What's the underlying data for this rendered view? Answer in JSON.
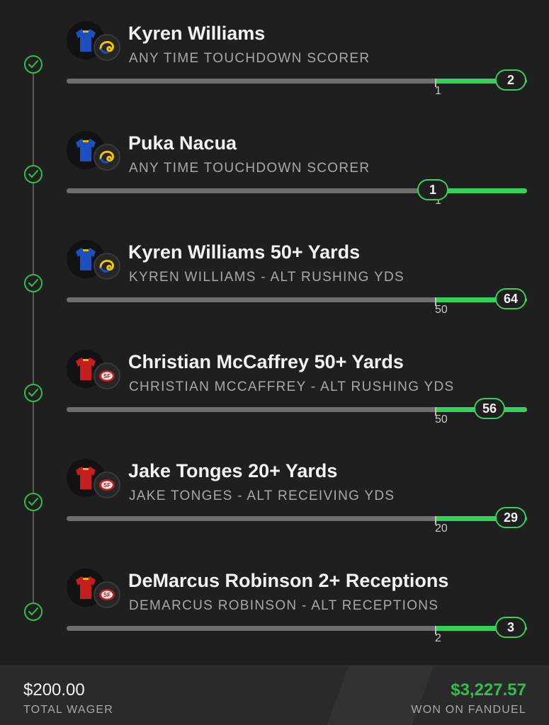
{
  "legs": [
    {
      "title": "Kyren Williams",
      "market": "ANY TIME TOUCHDOWN SCORER",
      "team": "rams",
      "jersey_color": "#1e4fc0",
      "status_icon": "check-circle-icon",
      "target": "1",
      "result": "2",
      "progress": 1.0
    },
    {
      "title": "Puka Nacua",
      "market": "ANY TIME TOUCHDOWN SCORER",
      "team": "rams",
      "jersey_color": "#1e4fc0",
      "status_icon": "check-circle-icon",
      "target": "1",
      "result": "1",
      "progress": 1.0
    },
    {
      "title": "Kyren Williams 50+ Yards",
      "market": "KYREN WILLIAMS - ALT RUSHING YDS",
      "team": "rams",
      "jersey_color": "#1e4fc0",
      "status_icon": "check-circle-icon",
      "target": "50",
      "result": "64",
      "progress": 1.0
    },
    {
      "title": "Christian McCaffrey 50+ Yards",
      "market": "CHRISTIAN MCCAFFREY - ALT RUSHING YDS",
      "team": "49ers",
      "jersey_color": "#c41e1e",
      "status_icon": "check-circle-icon",
      "target": "50",
      "result": "56",
      "progress": 1.0
    },
    {
      "title": "Jake Tonges 20+ Yards",
      "market": "JAKE TONGES - ALT RECEIVING YDS",
      "team": "49ers",
      "jersey_color": "#c41e1e",
      "status_icon": "check-circle-icon",
      "target": "20",
      "result": "29",
      "progress": 1.0
    },
    {
      "title": "DeMarcus Robinson 2+ Receptions",
      "market": "DEMARCUS ROBINSON - ALT RECEPTIONS",
      "team": "49ers",
      "jersey_color": "#c41e1e",
      "status_icon": "check-circle-icon",
      "target": "2",
      "result": "3",
      "progress": 1.0
    }
  ],
  "footer": {
    "wager_amount": "$200.00",
    "wager_label": "TOTAL WAGER",
    "won_amount": "$3,227.57",
    "won_label": "WON ON FANDUEL"
  },
  "colors": {
    "success_green": "#36d15a",
    "background": "#1f1f1f",
    "track_gray": "#6f6f6f"
  }
}
